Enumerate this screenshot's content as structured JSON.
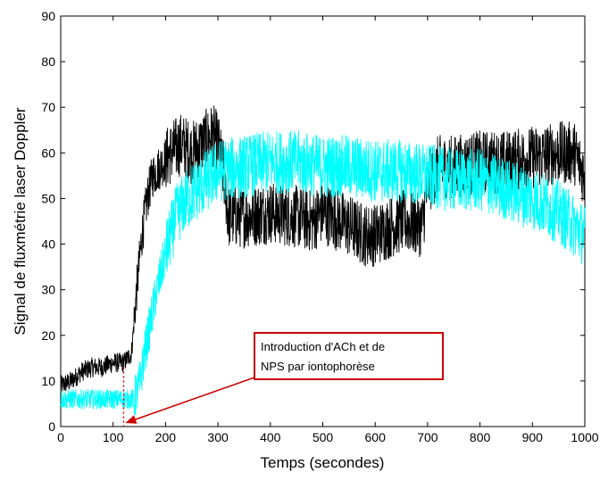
{
  "chart_data": {
    "type": "line",
    "xlabel": "Temps (secondes)",
    "ylabel": "Signal de fluxmétrie laser Doppler",
    "xlim": [
      0,
      1000
    ],
    "ylim": [
      0,
      90
    ],
    "xticks": [
      0,
      100,
      200,
      300,
      400,
      500,
      600,
      700,
      800,
      900,
      1000
    ],
    "yticks": [
      0,
      10,
      20,
      30,
      40,
      50,
      60,
      70,
      80,
      90
    ],
    "grid": false,
    "legend": "none",
    "series": [
      {
        "color": "#000000",
        "x": [
          0,
          20,
          40,
          60,
          80,
          100,
          120,
          135,
          145,
          155,
          165,
          175,
          190,
          210,
          230,
          250,
          270,
          290,
          300,
          310,
          320,
          350,
          400,
          450,
          480,
          500,
          550,
          580,
          600,
          650,
          690,
          700,
          720,
          750,
          800,
          850,
          900,
          950,
          980,
          1000
        ],
        "y": [
          9,
          10,
          12,
          13,
          13,
          14,
          14,
          16,
          30,
          42,
          50,
          55,
          57,
          60,
          62,
          60,
          62,
          64,
          62,
          56,
          46,
          46,
          47,
          46,
          45,
          47,
          44,
          42,
          42,
          45,
          44,
          53,
          57,
          57,
          58,
          58,
          59,
          60,
          60,
          55
        ]
      },
      {
        "color": "#00FFFF",
        "x": [
          0,
          20,
          40,
          60,
          80,
          100,
          120,
          140,
          150,
          160,
          170,
          180,
          190,
          200,
          210,
          220,
          230,
          250,
          270,
          290,
          300,
          350,
          400,
          450,
          500,
          550,
          600,
          650,
          700,
          750,
          800,
          850,
          900,
          950,
          980,
          1000
        ],
        "y": [
          6,
          6,
          6,
          6,
          6,
          6,
          6,
          6,
          9,
          16,
          22,
          28,
          33,
          38,
          42,
          46,
          48,
          51,
          53,
          55,
          56,
          57,
          58,
          58,
          57,
          57,
          56,
          56,
          55,
          54,
          54,
          52,
          50,
          47,
          44,
          42
        ]
      }
    ],
    "annotation": {
      "text_line1": "Introduction d'ACh et de",
      "text_line2": "NPS par iontophorèse",
      "marker_x": 120,
      "box_color": "#CC0000",
      "arrow_color": "#CC0000"
    }
  }
}
